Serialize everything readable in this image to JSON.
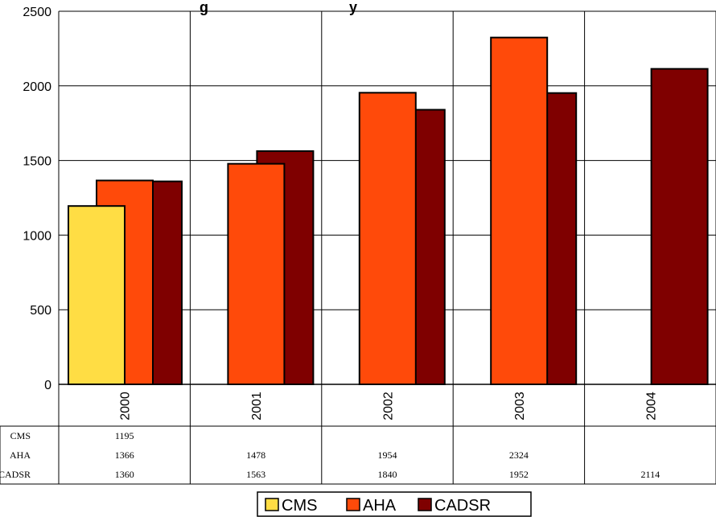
{
  "chart_data": {
    "type": "bar",
    "title": "g                                   y",
    "categories": [
      "2000",
      "2001",
      "2002",
      "2003",
      "2004"
    ],
    "series": [
      {
        "name": "CMS",
        "color": "#FFDD44",
        "values": [
          1195,
          null,
          null,
          null,
          null
        ]
      },
      {
        "name": "AHA",
        "color": "#FF4A0A",
        "values": [
          1366,
          1478,
          1954,
          2324,
          null
        ]
      },
      {
        "name": "CADSR",
        "color": "#7F0000",
        "values": [
          1360,
          1563,
          1840,
          1952,
          2114
        ]
      }
    ],
    "ylim": [
      0,
      2500
    ],
    "yticks": [
      "0",
      "500",
      "1000",
      "1500",
      "2000",
      "2500"
    ],
    "grid": true,
    "legend": "bottom",
    "data_table": true
  }
}
